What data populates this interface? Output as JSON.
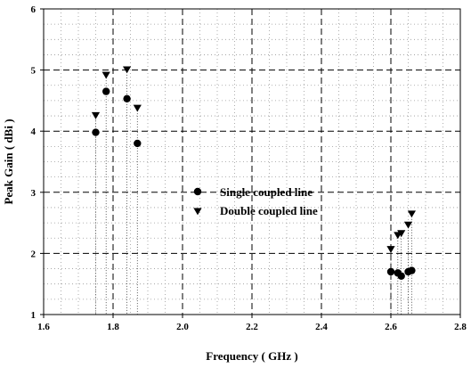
{
  "chart_data": {
    "type": "scatter",
    "title": "",
    "xlabel": "Frequency ( GHz )",
    "ylabel": "Peak Gain ( dBi )",
    "xlim": [
      1.6,
      2.8
    ],
    "ylim": [
      1,
      6
    ],
    "xticks": [
      "1.6",
      "1.8",
      "2.0",
      "2.2",
      "2.4",
      "2.6",
      "2.8"
    ],
    "yticks": [
      "1",
      "2",
      "3",
      "4",
      "5",
      "6"
    ],
    "grid": true,
    "legend_position": "center",
    "series": [
      {
        "name": "Single coupled line",
        "marker": "circle",
        "color": "#000000",
        "points": [
          [
            1.75,
            3.98
          ],
          [
            1.78,
            4.65
          ],
          [
            1.84,
            4.53
          ],
          [
            1.87,
            3.8
          ],
          [
            2.6,
            1.7
          ],
          [
            2.62,
            1.68
          ],
          [
            2.63,
            1.63
          ],
          [
            2.65,
            1.7
          ],
          [
            2.66,
            1.72
          ]
        ]
      },
      {
        "name": "Double coupled line",
        "marker": "triangle-down",
        "color": "#000000",
        "points": [
          [
            1.75,
            4.26
          ],
          [
            1.78,
            4.92
          ],
          [
            1.84,
            5.01
          ],
          [
            1.87,
            4.38
          ],
          [
            2.6,
            2.07
          ],
          [
            2.62,
            2.3
          ],
          [
            2.63,
            2.33
          ],
          [
            2.65,
            2.47
          ],
          [
            2.66,
            2.65
          ]
        ]
      }
    ]
  }
}
